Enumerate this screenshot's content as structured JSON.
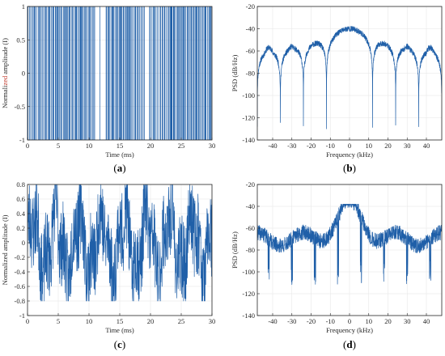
{
  "colors": {
    "trace": "#1f5fa8",
    "axis": "#262626",
    "grid": "#e6e6e6"
  },
  "chart_data": [
    {
      "id": "a",
      "panel_label": "a",
      "type": "line",
      "title": "",
      "xlabel": "Time (ms)",
      "ylabel_prefix": "Normali",
      "ylabel_highlight": "zed",
      "ylabel_suffix": " amplitude (I)",
      "highlight_color": "#c0392b",
      "xlim": [
        0,
        30
      ],
      "ylim": [
        -1,
        1
      ],
      "xticks": [
        0,
        5,
        10,
        15,
        20,
        25,
        30
      ],
      "yticks": [
        -1,
        -0.5,
        0,
        0.5,
        1
      ],
      "grid": true,
      "signal": "binary_square_wave",
      "values": [
        -1,
        1
      ],
      "duration_ms": 30
    },
    {
      "id": "b",
      "panel_label": "b",
      "type": "line",
      "title": "",
      "xlabel": "Frequency (kHz)",
      "ylabel": "PSD (dB/Hz)",
      "xlim": [
        -48,
        48
      ],
      "ylim": [
        -140,
        -20
      ],
      "xticks": [
        -40,
        -30,
        -20,
        -10,
        0,
        10,
        20,
        30,
        40
      ],
      "yticks": [
        -140,
        -120,
        -100,
        -80,
        -60,
        -40,
        -20
      ],
      "grid": true,
      "signal": "sinc_lobes",
      "main_lobe_peak_db": -40,
      "side_lobe_peak_db": -55,
      "null_spacing_khz": 12,
      "null_floor_db": -130
    },
    {
      "id": "c",
      "panel_label": "c",
      "type": "line",
      "title": "",
      "xlabel": "Time (ms)",
      "ylabel": "Normalized amplitude (I)",
      "xlim": [
        0,
        30
      ],
      "ylim": [
        -1,
        0.8
      ],
      "xticks": [
        0,
        5,
        10,
        15,
        20,
        25,
        30
      ],
      "yticks": [
        -1,
        -0.8,
        -0.6,
        -0.4,
        -0.2,
        0,
        0.2,
        0.4,
        0.6,
        0.8
      ],
      "grid": true,
      "signal": "noisy_waveform",
      "amplitude_range": [
        -0.8,
        0.8
      ]
    },
    {
      "id": "d",
      "panel_label": "d",
      "type": "line",
      "title": "",
      "xlabel": "Frequency (kHz)",
      "ylabel": "PSD (dB/Hz)",
      "xlim": [
        -48,
        48
      ],
      "ylim": [
        -140,
        -20
      ],
      "xticks": [
        -40,
        -30,
        -20,
        -10,
        0,
        10,
        20,
        30,
        40
      ],
      "yticks": [
        -140,
        -120,
        -100,
        -80,
        -60,
        -40,
        -20
      ],
      "grid": true,
      "signal": "noisy_spectrum",
      "peak_db": -40,
      "baseline_db": -70,
      "dip_floor_db": -115
    }
  ]
}
